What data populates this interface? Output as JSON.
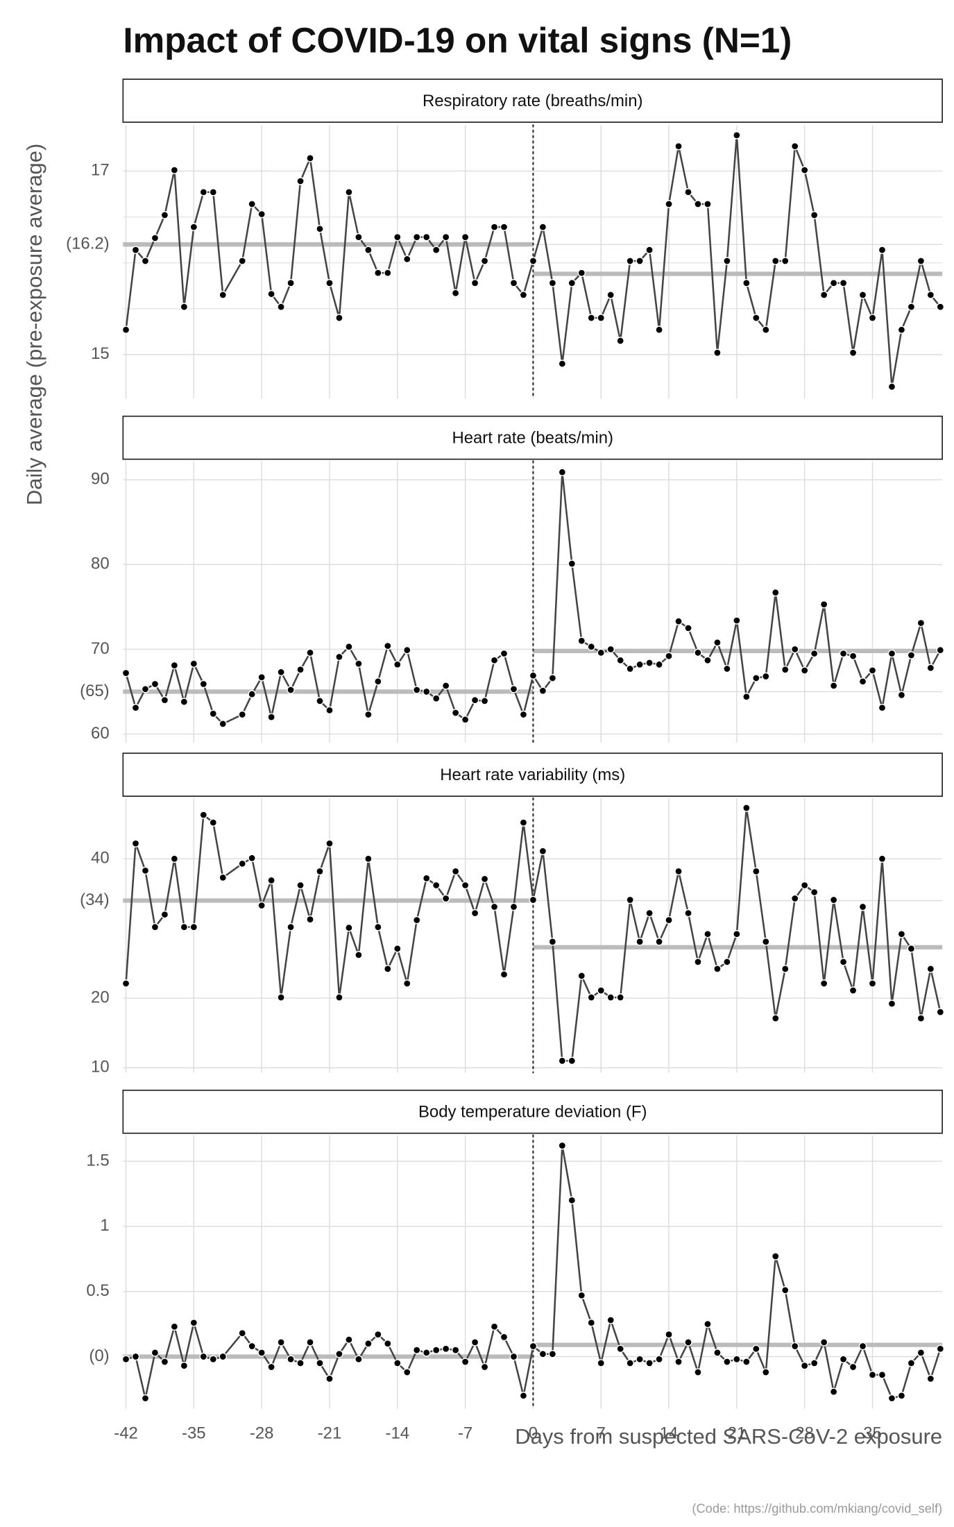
{
  "title": "Impact of COVID-19 on vital signs (N=1)",
  "y_label": "Daily average (pre-exposure average)",
  "x_label": "Days from suspected SARS-CoV-2 exposure",
  "caption": "(Code: https://github.com/mkiang/covid_self)",
  "chart_data": [
    {
      "type": "line",
      "title": "Respiratory rate (breaths/min)",
      "x": [
        -42,
        -41,
        -40,
        -39,
        -38,
        -37,
        -36,
        -35,
        -34,
        -33,
        -32,
        -30,
        -29,
        -28,
        -27,
        -26,
        -25,
        -24,
        -23,
        -22,
        -21,
        -20,
        -19,
        -18,
        -17,
        -16,
        -15,
        -14,
        -13,
        -12,
        -11,
        -10,
        -9,
        -8,
        -7,
        -6,
        -5,
        -4,
        -3,
        -2,
        -1,
        0,
        1,
        2,
        3,
        4,
        5,
        6,
        7,
        8,
        9,
        10,
        11,
        12,
        13,
        14,
        15,
        16,
        17,
        18,
        19,
        20,
        21,
        22,
        23,
        24,
        25,
        26,
        27,
        28,
        29,
        30,
        31,
        32,
        33,
        34,
        35,
        36,
        37,
        38,
        39,
        40,
        41,
        42
      ],
      "values": [
        15.27,
        16.14,
        16.02,
        16.27,
        16.52,
        17.01,
        15.52,
        16.39,
        16.77,
        16.77,
        15.65,
        16.02,
        16.64,
        16.53,
        15.66,
        15.52,
        15.78,
        16.89,
        17.14,
        16.37,
        15.78,
        15.4,
        16.77,
        16.28,
        16.14,
        15.89,
        15.89,
        16.28,
        16.04,
        16.28,
        16.28,
        16.14,
        16.28,
        15.67,
        16.28,
        15.78,
        16.02,
        16.39,
        16.39,
        15.78,
        15.65,
        16.02,
        16.39,
        15.78,
        14.9,
        15.78,
        15.89,
        15.4,
        15.4,
        15.65,
        15.15,
        16.02,
        16.02,
        16.14,
        15.27,
        16.64,
        17.27,
        16.77,
        16.64,
        16.64,
        15.02,
        16.02,
        17.39,
        15.78,
        15.4,
        15.27,
        16.02,
        16.02,
        17.27,
        17.01,
        16.52,
        15.65,
        15.78,
        15.78,
        15.02,
        15.65,
        15.4,
        16.14,
        14.65,
        15.27,
        15.52,
        16.02,
        15.65,
        15.52
      ],
      "pre_mean": 16.2,
      "post_mean": 15.88,
      "vline": 0,
      "xlim": [
        -42.3,
        42.2
      ],
      "xticks": [
        -42,
        -35,
        -28,
        -21,
        -14,
        -7,
        0,
        7,
        14,
        21,
        28,
        35
      ],
      "ylim": [
        14.52,
        17.5
      ],
      "yticks": [
        15,
        {
          "value": 16.2,
          "label": "(16.2)"
        },
        17
      ],
      "minor_yticks": [
        15.5,
        16,
        16.5
      ],
      "color": "#444444",
      "point_color": "#000000",
      "mean_color": "#bbbbbb",
      "grid": true,
      "show_xtick_labels": false
    },
    {
      "type": "line",
      "title": "Heart rate (beats/min)",
      "x": [
        -42,
        -41,
        -40,
        -39,
        -38,
        -37,
        -36,
        -35,
        -34,
        -33,
        -32,
        -30,
        -29,
        -28,
        -27,
        -26,
        -25,
        -24,
        -23,
        -22,
        -21,
        -20,
        -19,
        -18,
        -17,
        -16,
        -15,
        -14,
        -13,
        -12,
        -11,
        -10,
        -9,
        -8,
        -7,
        -6,
        -5,
        -4,
        -3,
        -2,
        -1,
        0,
        1,
        2,
        3,
        4,
        5,
        6,
        7,
        8,
        9,
        10,
        11,
        12,
        13,
        14,
        15,
        16,
        17,
        18,
        19,
        20,
        21,
        22,
        23,
        24,
        25,
        26,
        27,
        28,
        29,
        30,
        31,
        32,
        33,
        34,
        35,
        36,
        37,
        38,
        39,
        40,
        41,
        42
      ],
      "values": [
        67.2,
        63.1,
        65.3,
        65.9,
        64.0,
        68.1,
        63.8,
        68.3,
        65.9,
        62.4,
        61.2,
        62.3,
        64.7,
        66.7,
        62.0,
        67.3,
        65.2,
        67.6,
        69.6,
        63.9,
        62.8,
        69.1,
        70.3,
        68.3,
        62.3,
        66.2,
        70.4,
        68.2,
        69.9,
        65.2,
        65.0,
        64.2,
        65.7,
        62.5,
        61.7,
        64.0,
        63.9,
        68.7,
        69.5,
        65.3,
        62.3,
        66.9,
        65.1,
        66.6,
        90.9,
        80.1,
        71.0,
        70.3,
        69.6,
        70.0,
        68.7,
        67.7,
        68.2,
        68.4,
        68.2,
        69.2,
        73.3,
        72.5,
        69.6,
        68.7,
        70.8,
        67.7,
        73.4,
        64.4,
        66.6,
        66.8,
        76.7,
        67.6,
        70.0,
        67.5,
        69.5,
        75.3,
        65.7,
        69.5,
        69.2,
        66.2,
        67.5,
        63.1,
        69.5,
        64.6,
        69.3,
        73.1,
        67.8,
        69.9
      ],
      "pre_mean": 65,
      "post_mean": 69.8,
      "vline": 0,
      "xlim": [
        -42.3,
        42.2
      ],
      "xticks": [
        -42,
        -35,
        -28,
        -21,
        -14,
        -7,
        0,
        7,
        14,
        21,
        28,
        35
      ],
      "ylim": [
        59,
        92.2
      ],
      "yticks": [
        60,
        {
          "value": 65,
          "label": "(65)"
        },
        70,
        80,
        90
      ],
      "color": "#444444",
      "point_color": "#000000",
      "mean_color": "#bbbbbb",
      "grid": true,
      "show_xtick_labels": false
    },
    {
      "type": "line",
      "title": "Heart rate variability (ms)",
      "x": [
        -42,
        -41,
        -40,
        -39,
        -38,
        -37,
        -36,
        -35,
        -34,
        -33,
        -32,
        -30,
        -29,
        -28,
        -27,
        -26,
        -25,
        -24,
        -23,
        -22,
        -21,
        -20,
        -19,
        -18,
        -17,
        -16,
        -15,
        -14,
        -13,
        -12,
        -11,
        -10,
        -9,
        -8,
        -7,
        -6,
        -5,
        -4,
        -3,
        -2,
        -1,
        0,
        1,
        2,
        3,
        4,
        5,
        6,
        7,
        8,
        9,
        10,
        11,
        12,
        13,
        14,
        15,
        16,
        17,
        18,
        19,
        20,
        21,
        22,
        23,
        24,
        25,
        26,
        27,
        28,
        29,
        30,
        31,
        32,
        33,
        34,
        35,
        36,
        37,
        38,
        39,
        40,
        41,
        42
      ],
      "values": [
        22.1,
        42.2,
        38.3,
        30.2,
        32.0,
        40.0,
        30.2,
        30.2,
        46.3,
        45.2,
        37.3,
        39.3,
        40.1,
        33.3,
        36.9,
        20.1,
        30.2,
        36.2,
        31.3,
        38.2,
        42.2,
        20.1,
        30.1,
        26.2,
        40.0,
        30.2,
        24.2,
        27.1,
        22.1,
        31.2,
        37.2,
        36.2,
        34.3,
        38.2,
        36.2,
        32.2,
        37.1,
        33.1,
        23.4,
        33.1,
        45.2,
        34.1,
        41.1,
        28.1,
        11.0,
        11.0,
        23.2,
        20.1,
        21.1,
        20.1,
        20.1,
        34.1,
        28.1,
        32.2,
        28.1,
        31.2,
        38.2,
        32.2,
        25.2,
        29.2,
        24.2,
        25.2,
        29.2,
        47.3,
        38.2,
        28.1,
        17.1,
        24.2,
        34.3,
        36.2,
        35.2,
        22.1,
        34.1,
        25.2,
        21.1,
        33.1,
        22.1,
        40.0,
        19.2,
        29.2,
        27.1,
        17.1,
        24.2,
        18.0
      ],
      "pre_mean": 34,
      "post_mean": 27.3,
      "vline": 0,
      "xlim": [
        -42.3,
        42.2
      ],
      "xticks": [
        -42,
        -35,
        -28,
        -21,
        -14,
        -7,
        0,
        7,
        14,
        21,
        28,
        35
      ],
      "ylim": [
        9.3,
        48.7
      ],
      "yticks": [
        10,
        20,
        {
          "value": 34,
          "label": "(34)"
        },
        40
      ],
      "color": "#444444",
      "point_color": "#000000",
      "mean_color": "#bbbbbb",
      "grid": true,
      "show_xtick_labels": false
    },
    {
      "type": "line",
      "title": "Body temperature deviation (F)",
      "x": [
        -42,
        -41,
        -40,
        -39,
        -38,
        -37,
        -36,
        -35,
        -34,
        -33,
        -32,
        -30,
        -29,
        -28,
        -27,
        -26,
        -25,
        -24,
        -23,
        -22,
        -21,
        -20,
        -19,
        -18,
        -17,
        -16,
        -15,
        -14,
        -13,
        -12,
        -11,
        -10,
        -9,
        -8,
        -7,
        -6,
        -5,
        -4,
        -3,
        -2,
        -1,
        0,
        1,
        2,
        3,
        4,
        5,
        6,
        7,
        8,
        9,
        10,
        11,
        12,
        13,
        14,
        15,
        16,
        17,
        18,
        19,
        20,
        21,
        22,
        23,
        24,
        25,
        26,
        27,
        28,
        29,
        30,
        31,
        32,
        33,
        34,
        35,
        36,
        37,
        38,
        39,
        40,
        41,
        42
      ],
      "values": [
        -0.02,
        0.0,
        -0.32,
        0.03,
        -0.04,
        0.23,
        -0.07,
        0.26,
        0.0,
        -0.02,
        0.0,
        0.18,
        0.08,
        0.03,
        -0.08,
        0.11,
        -0.02,
        -0.05,
        0.11,
        -0.05,
        -0.17,
        0.02,
        0.13,
        -0.02,
        0.1,
        0.17,
        0.1,
        -0.05,
        -0.12,
        0.05,
        0.03,
        0.05,
        0.06,
        0.05,
        -0.04,
        0.11,
        -0.08,
        0.23,
        0.15,
        0.0,
        -0.3,
        0.08,
        0.02,
        0.02,
        1.62,
        1.2,
        0.47,
        0.26,
        -0.05,
        0.28,
        0.06,
        -0.05,
        -0.02,
        -0.05,
        -0.02,
        0.17,
        -0.04,
        0.11,
        -0.12,
        0.25,
        0.03,
        -0.04,
        -0.02,
        -0.04,
        0.06,
        -0.12,
        0.77,
        0.51,
        0.08,
        -0.07,
        -0.05,
        0.11,
        -0.27,
        -0.02,
        -0.08,
        0.08,
        -0.14,
        -0.14,
        -0.32,
        -0.3,
        -0.05,
        0.03,
        -0.17,
        0.06
      ],
      "pre_mean": 0,
      "post_mean": 0.09,
      "vline": 0,
      "xlim": [
        -42.3,
        42.2
      ],
      "xticks": [
        -42,
        -35,
        -28,
        -21,
        -14,
        -7,
        0,
        7,
        14,
        21,
        28,
        35
      ],
      "ylim": [
        -0.4,
        1.7
      ],
      "yticks": [
        {
          "value": 0,
          "label": "(0)"
        },
        0.5,
        1,
        1.5
      ],
      "color": "#444444",
      "point_color": "#000000",
      "mean_color": "#bbbbbb",
      "grid": true,
      "show_xtick_labels": true
    }
  ]
}
